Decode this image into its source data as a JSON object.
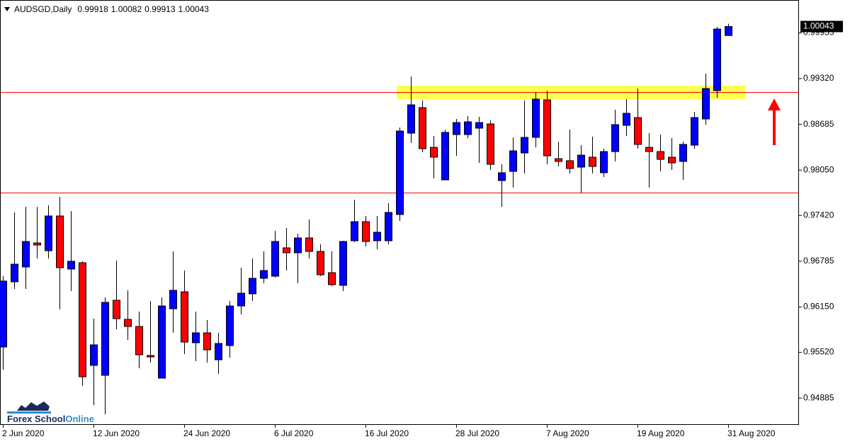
{
  "chart_data": {
    "type": "candlestick",
    "title": "AUDSGD,Daily",
    "categories": [
      "2 Jun 2020",
      null,
      null,
      null,
      null,
      null,
      null,
      null,
      "12 Jun 2020",
      null,
      null,
      null,
      null,
      null,
      null,
      null,
      "24 Jun 2020",
      null,
      null,
      null,
      null,
      null,
      null,
      null,
      "6 Jul 2020",
      null,
      null,
      null,
      null,
      null,
      null,
      null,
      "16 Jul 2020",
      null,
      null,
      null,
      null,
      null,
      null,
      null,
      "28 Jul 2020",
      null,
      null,
      null,
      null,
      null,
      null,
      null,
      "7 Aug 2020",
      null,
      null,
      null,
      null,
      null,
      null,
      null,
      "19 Aug 2020",
      null,
      null,
      null,
      null,
      null,
      null,
      null,
      "31 Aug 2020"
    ],
    "open": [
      0.95594,
      0.96499,
      0.96705,
      0.97039,
      0.96931,
      0.97413,
      0.96676,
      0.96764,
      0.95339,
      0.95201,
      0.96243,
      0.95978,
      0.95879,
      0.95476,
      0.95162,
      0.96125,
      0.96361,
      0.95653,
      0.95791,
      0.95417,
      0.95614,
      0.96164,
      0.96332,
      0.96548,
      0.96577,
      0.96971,
      0.96902,
      0.97108,
      0.96921,
      0.96626,
      0.9645,
      0.97069,
      0.97334,
      0.97069,
      0.97069,
      0.97433,
      0.98563,
      0.98917,
      0.98366,
      0.97914,
      0.98543,
      0.98543,
      0.98632,
      0.98691,
      0.97904,
      0.98032,
      0.98288,
      0.98504,
      0.99025,
      0.98209,
      0.9818,
      0.98091,
      0.98229,
      0.98013,
      0.98307,
      0.98671,
      0.98779,
      0.98366,
      0.98307,
      0.98229,
      0.9817,
      0.98396,
      0.9876,
      0.99153,
      0.99918
    ],
    "high": [
      0.96577,
      0.97462,
      0.97541,
      0.97541,
      0.9756,
      0.97678,
      0.97482,
      0.96784,
      0.95988,
      0.96282,
      0.96794,
      0.96381,
      0.96086,
      0.96233,
      0.96282,
      0.96921,
      0.96656,
      0.96086,
      0.95968,
      0.95791,
      0.96233,
      0.96695,
      0.96823,
      0.96921,
      0.97206,
      0.97246,
      0.97167,
      0.97364,
      0.9702,
      0.96921,
      0.97069,
      0.97639,
      0.97413,
      0.97413,
      0.9759,
      0.98642,
      0.99349,
      0.99015,
      0.98524,
      0.98612,
      0.9876,
      0.98799,
      0.98789,
      0.9874,
      0.9813,
      0.98504,
      0.99015,
      0.99133,
      0.99153,
      0.98445,
      0.98612,
      0.98396,
      0.98514,
      0.98347,
      0.98887,
      0.99035,
      0.99182,
      0.98563,
      0.98543,
      0.98494,
      0.98445,
      0.98858,
      0.99389,
      1.00038,
      1.00082
    ],
    "low": [
      0.9528,
      0.964,
      0.964,
      0.96823,
      0.96823,
      0.96115,
      0.96371,
      0.95054,
      0.94788,
      0.9466,
      0.9584,
      0.95693,
      0.95299,
      0.95378,
      0.95162,
      0.95791,
      0.95496,
      0.95398,
      0.95378,
      0.95221,
      0.95447,
      0.96046,
      0.96233,
      0.96479,
      0.96558,
      0.96656,
      0.96479,
      0.96823,
      0.96577,
      0.9644,
      0.96371,
      0.97049,
      0.9699,
      0.96951,
      0.9702,
      0.97344,
      0.98425,
      0.98298,
      0.97934,
      0.97914,
      0.98248,
      0.98494,
      0.9815,
      0.98052,
      0.97541,
      0.97806,
      0.98003,
      0.98366,
      0.9813,
      0.98101,
      0.98003,
      0.97737,
      0.98003,
      0.97954,
      0.9817,
      0.98524,
      0.98347,
      0.97806,
      0.98032,
      0.98052,
      0.97914,
      0.98347,
      0.98681,
      0.99055,
      0.99913
    ],
    "close": [
      0.96509,
      0.96744,
      0.97059,
      0.9701,
      0.97413,
      0.96695,
      0.96784,
      0.95181,
      0.95624,
      0.96214,
      0.95988,
      0.95879,
      0.95486,
      0.95457,
      0.96164,
      0.96381,
      0.95663,
      0.95791,
      0.95555,
      0.95643,
      0.96164,
      0.96341,
      0.96548,
      0.96656,
      0.97059,
      0.96902,
      0.97108,
      0.96921,
      0.96597,
      0.96459,
      0.97059,
      0.97334,
      0.97059,
      0.97187,
      0.97462,
      0.98592,
      0.98956,
      0.98347,
      0.98229,
      0.98573,
      0.9871,
      0.9872,
      0.9871,
      0.9813,
      0.98013,
      0.98317,
      0.98504,
      0.99035,
      0.98248,
      0.9817,
      0.98072,
      0.98258,
      0.98101,
      0.98307,
      0.98681,
      0.98838,
      0.98406,
      0.98307,
      0.98199,
      0.9815,
      0.98406,
      0.98779,
      0.99182,
      1.00008,
      1.00043
    ],
    "up_color": "#0000ff",
    "down_color": "#ff0000",
    "ylim": [
      0.94513,
      1.00411
    ],
    "yticks": [
      0.94885,
      {
        "value": 0.9552,
        "label": "0.95520"
      },
      {
        "value": 0.9615,
        "label": "0.96150"
      },
      0.96785,
      {
        "value": 0.9742,
        "label": "0.97420"
      },
      {
        "value": 0.9805,
        "label": "0.98050"
      },
      0.98685,
      {
        "value": 0.9932,
        "label": "0.99320"
      },
      0.99955
    ],
    "hlines": [
      {
        "value": 0.99133,
        "color": "#ff0000"
      },
      {
        "value": 0.97737,
        "color": "#ff0000"
      }
    ],
    "zone": {
      "ylim": [
        0.99035,
        0.99222
      ],
      "color": "#ffff33"
    },
    "logo": {
      "text1": "Forex School",
      "text2": "Online"
    }
  }
}
